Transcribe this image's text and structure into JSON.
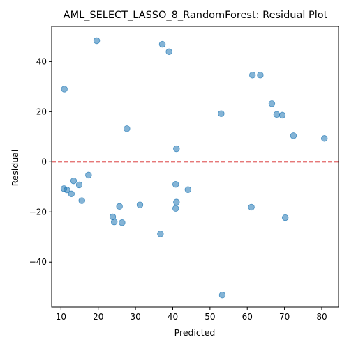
{
  "chart_data": {
    "type": "scatter",
    "title": "AML_SELECT_LASSO_8_RandomForest: Residual Plot",
    "xlabel": "Predicted",
    "ylabel": "Residual",
    "xlim": [
      7.5,
      84.5
    ],
    "ylim": [
      -58,
      54
    ],
    "xticks": [
      10,
      20,
      30,
      40,
      50,
      60,
      70,
      80
    ],
    "yticks": [
      -40,
      -20,
      0,
      20,
      40
    ],
    "point_color": "#1f77b4",
    "reference_line": {
      "y": 0,
      "color": "#d62728",
      "style": "dashed"
    },
    "grid": false,
    "points": [
      {
        "x": 19.6,
        "y": 48.3
      },
      {
        "x": 37.2,
        "y": 46.9
      },
      {
        "x": 39.0,
        "y": 43.9
      },
      {
        "x": 61.4,
        "y": 34.6
      },
      {
        "x": 63.5,
        "y": 34.6
      },
      {
        "x": 10.9,
        "y": 29.0
      },
      {
        "x": 66.6,
        "y": 23.2
      },
      {
        "x": 53.0,
        "y": 19.2
      },
      {
        "x": 67.9,
        "y": 18.9
      },
      {
        "x": 69.4,
        "y": 18.6
      },
      {
        "x": 27.7,
        "y": 13.2
      },
      {
        "x": 72.4,
        "y": 10.4
      },
      {
        "x": 80.7,
        "y": 9.3
      },
      {
        "x": 41.0,
        "y": 5.2
      },
      {
        "x": 17.4,
        "y": -5.3
      },
      {
        "x": 13.4,
        "y": -7.6
      },
      {
        "x": 40.8,
        "y": -9.0
      },
      {
        "x": 14.9,
        "y": -9.2
      },
      {
        "x": 10.8,
        "y": -10.7
      },
      {
        "x": 11.6,
        "y": -11.2
      },
      {
        "x": 44.1,
        "y": -11.1
      },
      {
        "x": 12.8,
        "y": -12.8
      },
      {
        "x": 15.6,
        "y": -15.5
      },
      {
        "x": 41.0,
        "y": -16.1
      },
      {
        "x": 31.2,
        "y": -17.2
      },
      {
        "x": 25.7,
        "y": -17.8
      },
      {
        "x": 61.1,
        "y": -18.1
      },
      {
        "x": 40.8,
        "y": -18.6
      },
      {
        "x": 23.9,
        "y": -22.0
      },
      {
        "x": 70.2,
        "y": -22.3
      },
      {
        "x": 24.3,
        "y": -24.0
      },
      {
        "x": 26.4,
        "y": -24.3
      },
      {
        "x": 36.7,
        "y": -28.8
      },
      {
        "x": 53.3,
        "y": -53.2
      }
    ]
  }
}
